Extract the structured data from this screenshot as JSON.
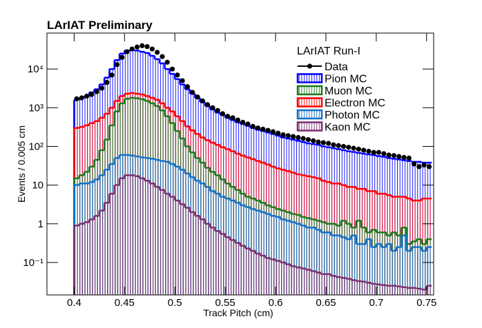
{
  "chart_data": {
    "type": "histogram",
    "title": "LArIAT Preliminary",
    "x_label": "Track Pitch (cm)",
    "y_label": "Events / 0.005 cm",
    "legend_title": "LArIAT Run-I",
    "log_y": true,
    "xlim": [
      0.373,
      0.757
    ],
    "ylim": [
      0.0145,
      85000
    ],
    "xticks": [
      0.4,
      0.45,
      0.5,
      0.55,
      0.6,
      0.65,
      0.7,
      0.75
    ],
    "yticks": [
      {
        "value": 0.1,
        "label": "10⁻¹"
      },
      1,
      10,
      {
        "value": 100,
        "label": "10²"
      },
      {
        "value": 1000,
        "label": "10³"
      },
      {
        "value": 10000,
        "label": "10⁴"
      }
    ],
    "bins": [
      0.4,
      0.405,
      0.41,
      0.415,
      0.42,
      0.425,
      0.43,
      0.435,
      0.44,
      0.445,
      0.45,
      0.455,
      0.46,
      0.465,
      0.47,
      0.475,
      0.48,
      0.485,
      0.49,
      0.495,
      0.5,
      0.505,
      0.51,
      0.515,
      0.52,
      0.525,
      0.53,
      0.535,
      0.54,
      0.545,
      0.55,
      0.555,
      0.56,
      0.565,
      0.57,
      0.575,
      0.58,
      0.585,
      0.59,
      0.595,
      0.6,
      0.605,
      0.61,
      0.615,
      0.62,
      0.625,
      0.63,
      0.635,
      0.64,
      0.645,
      0.65,
      0.655,
      0.66,
      0.665,
      0.67,
      0.675,
      0.68,
      0.685,
      0.69,
      0.695,
      0.7,
      0.705,
      0.71,
      0.715,
      0.72,
      0.725,
      0.73,
      0.735,
      0.74,
      0.745,
      0.75,
      0.755
    ],
    "series": [
      {
        "name": "Data",
        "color": "#000000",
        "draw": "points",
        "values": [
          1700,
          1800,
          2000,
          2200,
          2600,
          3200,
          4500,
          7000,
          13000,
          20000,
          28000,
          33000,
          37000,
          40000,
          38000,
          33000,
          27000,
          21000,
          15000,
          10000,
          7000,
          5000,
          3500,
          2500,
          1900,
          1500,
          1200,
          1000,
          850,
          700,
          600,
          550,
          480,
          420,
          380,
          330,
          300,
          280,
          260,
          240,
          220,
          200,
          190,
          180,
          170,
          160,
          150,
          140,
          130,
          125,
          120,
          110,
          105,
          100,
          95,
          90,
          85,
          80,
          75,
          70,
          70,
          65,
          60,
          58,
          55,
          52,
          50,
          35,
          30,
          33,
          30
        ]
      },
      {
        "name": "Pion MC",
        "color": "#0000ff",
        "draw": "hist",
        "values": [
          1600,
          1800,
          2000,
          2500,
          3000,
          4000,
          6000,
          10000,
          17000,
          25000,
          30000,
          31000,
          30000,
          28000,
          26000,
          22000,
          18000,
          14000,
          10000,
          7500,
          5500,
          4000,
          3000,
          2300,
          1800,
          1400,
          1100,
          900,
          750,
          650,
          550,
          480,
          420,
          380,
          340,
          300,
          270,
          250,
          230,
          210,
          190,
          170,
          160,
          150,
          140,
          130,
          120,
          115,
          110,
          100,
          95,
          90,
          85,
          80,
          75,
          72,
          68,
          65,
          62,
          60,
          56,
          54,
          50,
          48,
          46,
          44,
          42,
          40,
          40,
          38,
          38
        ]
      },
      {
        "name": "Muon MC",
        "color": "#1a7a1a",
        "draw": "hist",
        "values": [
          15,
          18,
          22,
          30,
          45,
          80,
          150,
          350,
          800,
          1300,
          1700,
          1800,
          1750,
          1650,
          1500,
          1300,
          1100,
          850,
          600,
          400,
          250,
          160,
          100,
          70,
          50,
          38,
          28,
          22,
          18,
          14,
          11,
          9,
          7.5,
          6,
          5,
          4.5,
          4,
          3.5,
          3,
          2.7,
          2.4,
          2.2,
          2,
          1.8,
          1.7,
          1.5,
          1.4,
          1.3,
          1.2,
          1.1,
          1,
          1,
          0.9,
          1.2,
          1,
          0.8,
          1.2,
          0.8,
          0.6,
          0.7,
          0.6,
          0.6,
          0.5,
          0.6,
          0.5,
          0.8,
          0.3,
          0.35,
          0.4,
          0.3,
          0.4
        ]
      },
      {
        "name": "Electron MC",
        "color": "#ff0000",
        "draw": "hist",
        "values": [
          300,
          320,
          350,
          400,
          450,
          550,
          700,
          1000,
          1500,
          2000,
          2300,
          2400,
          2300,
          2200,
          2000,
          1800,
          1600,
          1300,
          1000,
          800,
          600,
          450,
          330,
          260,
          210,
          170,
          145,
          125,
          110,
          95,
          85,
          75,
          65,
          58,
          52,
          47,
          42,
          38,
          34,
          30,
          27,
          25,
          23,
          21,
          19,
          18,
          17,
          16,
          15,
          13,
          12,
          11,
          11,
          10,
          9,
          9,
          8,
          8,
          7,
          7,
          6,
          6,
          5.5,
          5,
          5,
          5,
          4.5,
          4,
          4,
          4.5,
          4.5
        ]
      },
      {
        "name": "Photon MC",
        "color": "#1170c8",
        "draw": "hist",
        "values": [
          10,
          11,
          11,
          12,
          14,
          18,
          25,
          35,
          50,
          60,
          60,
          58,
          55,
          52,
          50,
          48,
          45,
          42,
          40,
          35,
          30,
          25,
          20,
          16,
          13,
          11,
          9,
          7,
          6,
          5,
          4.5,
          4,
          3.5,
          3,
          2.7,
          2.4,
          2.2,
          2,
          1.8,
          1.6,
          1.5,
          1.3,
          1.2,
          1.1,
          1,
          0.9,
          0.8,
          0.8,
          0.7,
          0.6,
          0.6,
          0.5,
          0.5,
          0.45,
          0.4,
          0.5,
          0.3,
          0.3,
          0.4,
          0.25,
          0.3,
          0.25,
          0.3,
          0.2,
          0.25,
          0.5,
          0.2,
          0.25,
          0.25,
          0.2,
          0.25
        ]
      },
      {
        "name": "Kaon MC",
        "color": "#7b2d6e",
        "draw": "hist",
        "values": [
          0.9,
          1,
          1.1,
          1.3,
          1.6,
          2.2,
          3.5,
          6,
          10,
          15,
          18,
          18,
          17,
          15,
          13,
          11,
          9,
          7.5,
          6,
          5,
          4,
          3.2,
          2.6,
          2,
          1.6,
          1.3,
          1,
          0.8,
          0.65,
          0.55,
          0.45,
          0.38,
          0.32,
          0.27,
          0.23,
          0.2,
          0.17,
          0.15,
          0.13,
          0.12,
          0.11,
          0.1,
          0.09,
          0.08,
          0.075,
          0.07,
          0.065,
          0.06,
          0.055,
          0.05,
          0.05,
          0.045,
          0.042,
          0.04,
          0.038,
          0.035,
          0.033,
          0.032,
          0.03,
          0.028,
          0.027,
          0.026,
          0.025,
          0.025,
          0.024,
          0.023,
          0.022,
          0.022,
          0.021,
          0.02,
          0.025
        ]
      }
    ]
  }
}
